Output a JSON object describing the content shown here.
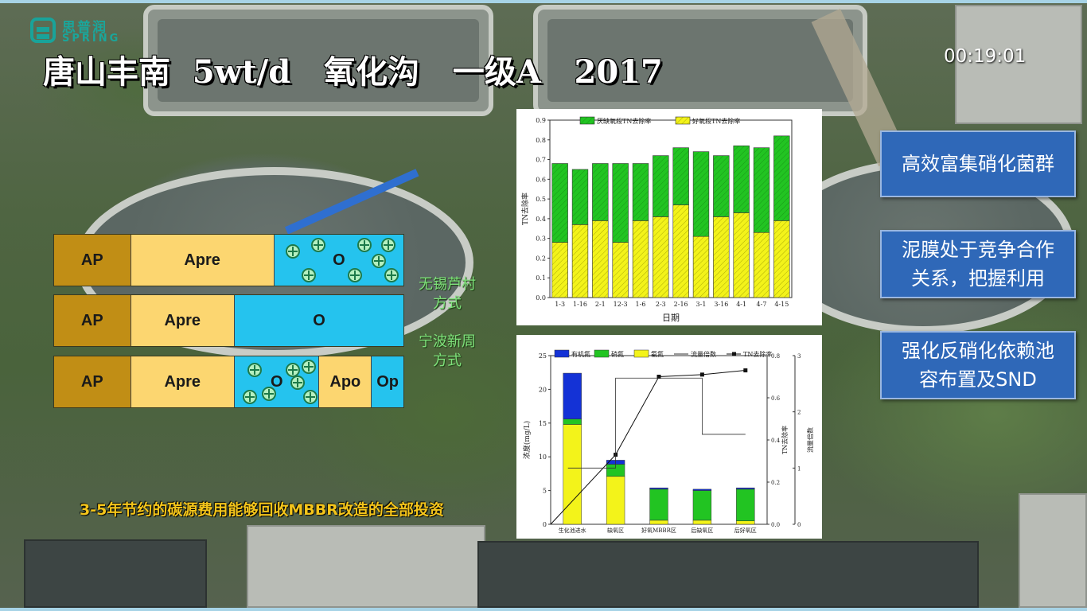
{
  "logo": {
    "cn": "思普润",
    "en": "SPRING"
  },
  "title": "唐山丰南  5wt/d   氧化沟   一级A   2017",
  "timestamp": "00:19:01",
  "processes": [
    {
      "segments": [
        {
          "label": "AP",
          "type": "ap"
        },
        {
          "label": "Apre",
          "type": "apre"
        },
        {
          "label": "O",
          "type": "o",
          "media": true
        }
      ]
    },
    {
      "segments": [
        {
          "label": "AP",
          "type": "ap"
        },
        {
          "label": "Apre",
          "type": "apre"
        },
        {
          "label": "O",
          "type": "o",
          "media": false
        }
      ]
    },
    {
      "segments": [
        {
          "label": "AP",
          "type": "ap"
        },
        {
          "label": "Apre",
          "type": "apre"
        },
        {
          "label": "O",
          "type": "o",
          "media": true
        },
        {
          "label": "Apo",
          "type": "apo"
        },
        {
          "label": "Op",
          "type": "op"
        }
      ]
    }
  ],
  "side_labels": {
    "wuxi": [
      "无锡芦村",
      "方式"
    ],
    "ningbo": [
      "宁波新周",
      "方式"
    ]
  },
  "callouts": [
    [
      "高效富集硝化菌群"
    ],
    [
      "泥膜处于竞争合作",
      "关系，把握利用"
    ],
    [
      "强化反硝化依赖池",
      "容布置及SND"
    ]
  ],
  "bottom_note": "3-5年节约的碳源费用能够回收MBBR改造的全部投资",
  "colors": {
    "green": "#22c422",
    "yellow": "#f3f31a",
    "blue": "#1432d6",
    "callout_bg": "#2f68b8",
    "accent_text": "#f4c51b"
  },
  "chart_data": [
    {
      "type": "bar",
      "stacked": true,
      "categories": [
        "1-3",
        "1-16",
        "2-1",
        "12-3",
        "1-6",
        "2-3",
        "2-16",
        "3-1",
        "3-16",
        "4-1",
        "4-7",
        "4-15"
      ],
      "series": [
        {
          "name": "好氧段TN去除率",
          "color": "#f3f31a",
          "values": [
            0.28,
            0.37,
            0.39,
            0.28,
            0.39,
            0.41,
            0.47,
            0.31,
            0.41,
            0.43,
            0.33,
            0.39
          ]
        },
        {
          "name": "厌缺氧段TN去除率",
          "color": "#22c422",
          "values": [
            0.4,
            0.28,
            0.29,
            0.4,
            0.29,
            0.31,
            0.29,
            0.43,
            0.31,
            0.34,
            0.43,
            0.43
          ]
        }
      ],
      "legend_order": [
        "厌缺氧段TN去除率",
        "好氧段TN去除率"
      ],
      "xlabel": "日期",
      "ylabel": "TN去除率",
      "ylim": [
        0,
        0.9
      ],
      "yticks": [
        0,
        0.1,
        0.2,
        0.3,
        0.4,
        0.5,
        0.6,
        0.7,
        0.8,
        0.9
      ],
      "legend": "top"
    },
    {
      "type": "bar",
      "stacked": true,
      "categories": [
        "生化池进水",
        "缺氧区",
        "好氧MBBR区",
        "后缺氧区",
        "后好氧区"
      ],
      "series": [
        {
          "name": "氨氮",
          "color": "#f3f31a",
          "values": [
            14.8,
            7.1,
            0.6,
            0.6,
            0.5
          ]
        },
        {
          "name": "硝氮",
          "color": "#22c422",
          "values": [
            0.8,
            1.8,
            4.6,
            4.4,
            4.7
          ]
        },
        {
          "name": "有机氮",
          "color": "#1432d6",
          "values": [
            6.8,
            0.6,
            0.2,
            0.2,
            0.2
          ]
        }
      ],
      "lines": [
        {
          "name": "TN去除率",
          "axis": "right",
          "x": [
            -0.5,
            1,
            2,
            3,
            4
          ],
          "values": [
            0.0,
            0.33,
            0.7,
            0.71,
            0.73
          ]
        },
        {
          "name": "流量倍数",
          "axis": "right2",
          "step": true,
          "points": [
            [
              -0.1,
              1.0
            ],
            [
              1,
              1.0
            ],
            [
              1,
              2.6
            ],
            [
              3,
              2.6
            ],
            [
              3,
              1.6
            ],
            [
              4,
              1.6
            ]
          ]
        }
      ],
      "ylabel": "浓度(mg/L)",
      "ylim": [
        0,
        25
      ],
      "yticks": [
        0,
        5,
        10,
        15,
        20,
        25
      ],
      "y2label": "TN去除率",
      "y2lim": [
        0,
        0.8
      ],
      "y2ticks": [
        0.0,
        0.2,
        0.4,
        0.6,
        0.8
      ],
      "y3label": "流量倍数",
      "y3lim": [
        0,
        3
      ],
      "y3ticks": [
        0,
        1,
        2,
        3
      ],
      "legend": "top"
    }
  ]
}
